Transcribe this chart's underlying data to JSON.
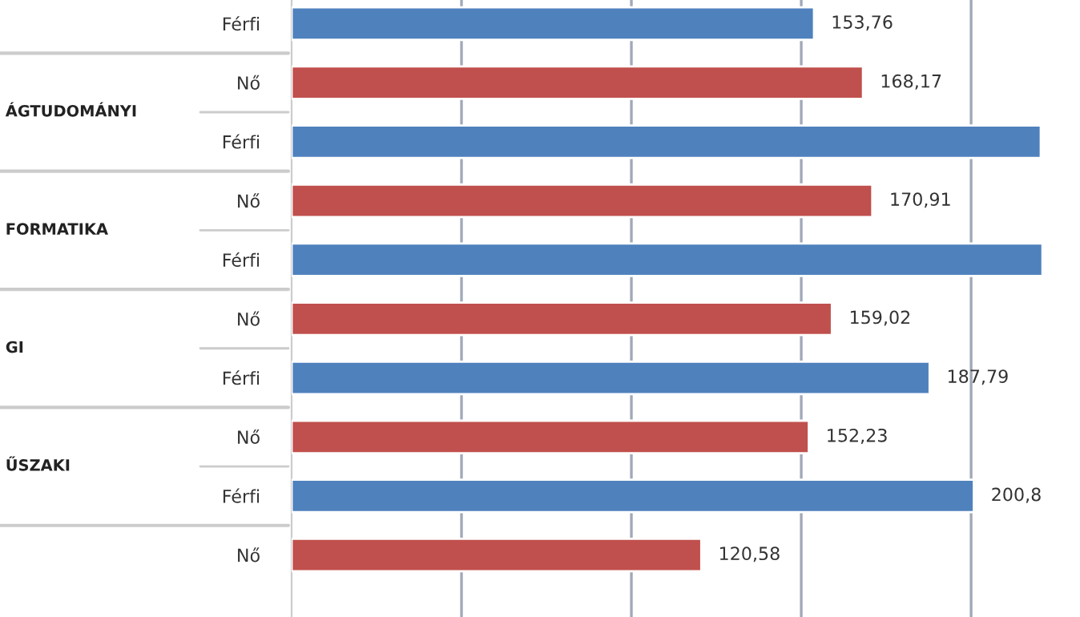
{
  "chart_data": {
    "type": "bar",
    "orientation": "horizontal",
    "categories": [
      "Férfi",
      "Nő",
      "Férfi",
      "Nő",
      "Férfi",
      "Nő",
      "Férfi",
      "Nő",
      "Férfi",
      "Nő"
    ],
    "values": [
      153.76,
      168.17,
      220.5,
      170.91,
      221,
      159.02,
      187.79,
      152.23,
      200.8,
      120.58
    ],
    "value_labels": [
      "153,76",
      "168,17",
      null,
      "170,91",
      null,
      "159,02",
      "187,79",
      "152,23",
      "200,8",
      "120,58"
    ],
    "colors": [
      "#4f81bd",
      "#c0504d",
      "#4f81bd",
      "#c0504d",
      "#4f81bd",
      "#c0504d",
      "#4f81bd",
      "#c0504d",
      "#4f81bd",
      "#c0504d"
    ],
    "annotations": [
      "ÁGTUDOMÁNYI",
      "FORMATIKA",
      "GI",
      "ŰSZAKI"
    ],
    "xticks": [
      {
        "value": 50,
        "label": null
      },
      {
        "value": 100,
        "label": null
      },
      {
        "value": 150,
        "label": null
      },
      {
        "value": 200,
        "label": null
      }
    ],
    "grid": "x",
    "tick_labels": "y",
    "legend": false
  }
}
